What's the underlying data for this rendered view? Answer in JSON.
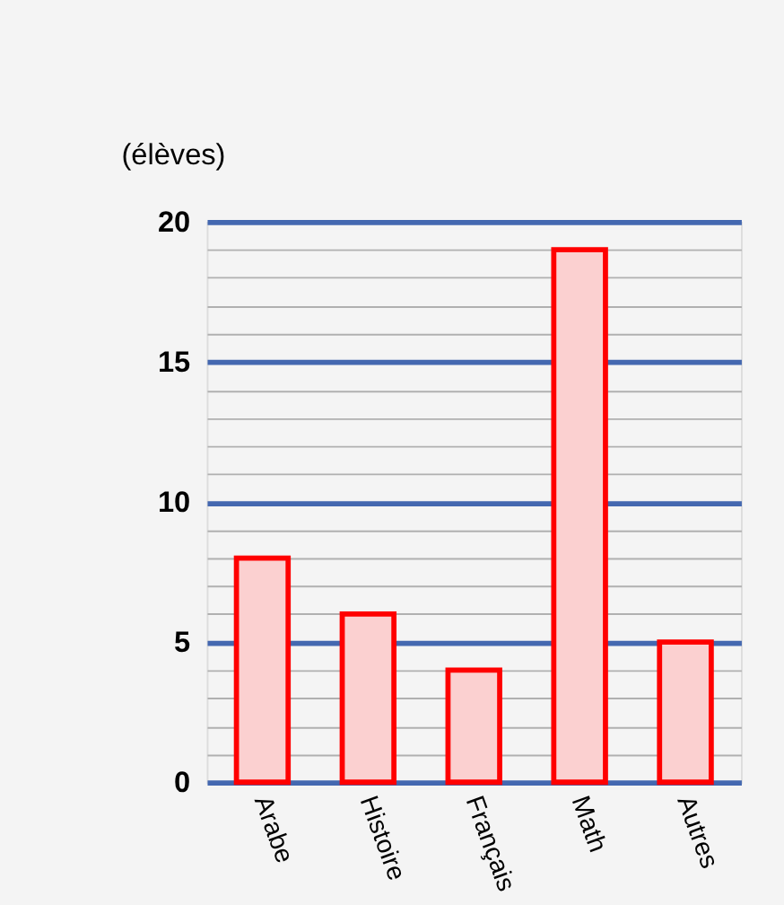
{
  "chart_data": {
    "type": "bar",
    "ylabel": "(élèves)",
    "categories": [
      "Arabe",
      "Histoire",
      "Français",
      "Math",
      "Autres"
    ],
    "values": [
      8,
      6,
      4,
      19,
      5
    ],
    "color": "#ff0000",
    "ylim": [
      0,
      20
    ],
    "yticks": [
      0,
      {
        "value": 1,
        "label": null
      },
      {
        "value": 2,
        "label": null
      },
      {
        "value": 3,
        "label": null
      },
      {
        "value": 4,
        "label": null
      },
      5,
      {
        "value": 6,
        "label": null
      },
      {
        "value": 7,
        "label": null
      },
      {
        "value": 8,
        "label": null
      },
      {
        "value": 9,
        "label": null
      },
      10,
      {
        "value": 11,
        "label": null
      },
      {
        "value": 12,
        "label": null
      },
      {
        "value": 13,
        "label": null
      },
      {
        "value": 14,
        "label": null
      },
      15,
      {
        "value": 16,
        "label": null
      },
      {
        "value": 17,
        "label": null
      },
      {
        "value": 18,
        "label": null
      },
      {
        "value": 19,
        "label": null
      },
      20
    ],
    "grid": "y"
  }
}
